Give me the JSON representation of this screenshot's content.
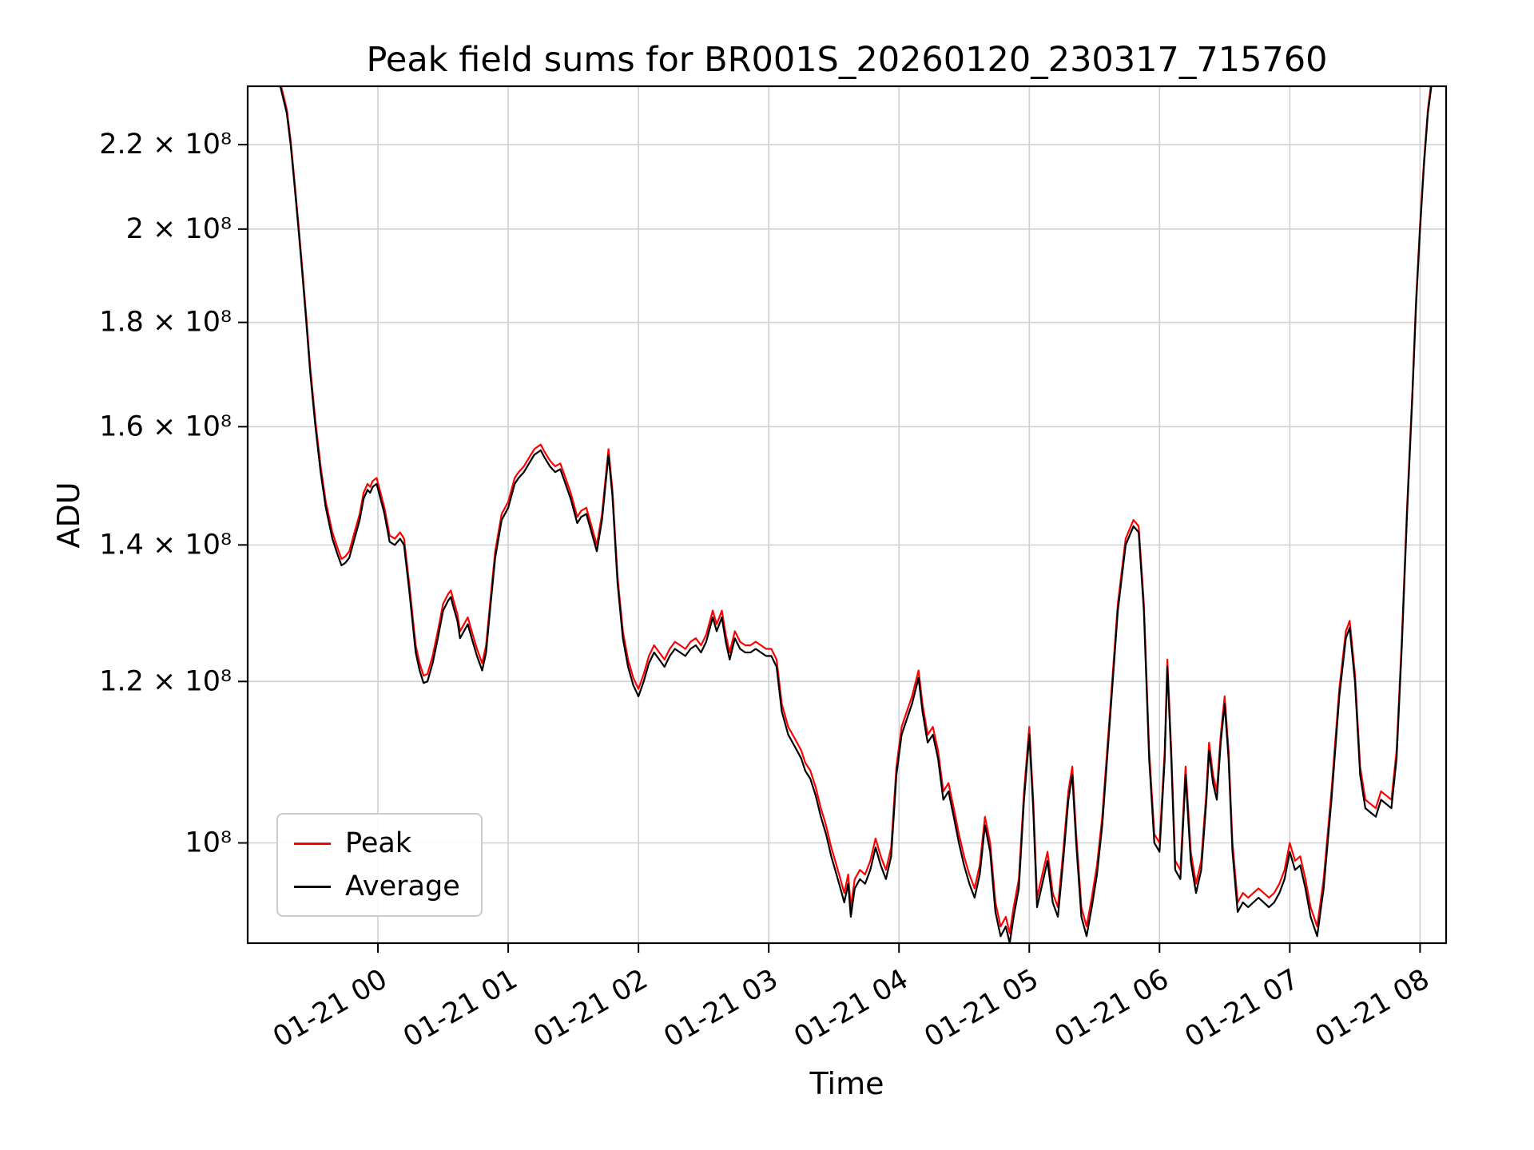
{
  "chart_data": {
    "type": "line",
    "title": "Peak field sums for BR001S_20260120_230317_715760",
    "xlabel": "Time",
    "ylabel": "ADU",
    "y_scale": "log",
    "grid": true,
    "legend_position": "lower left",
    "value_unit": "1e8 ADU",
    "x_unit": "hours since 2026-01-20 23:00",
    "xlim_hours": [
      0,
      9.2
    ],
    "ylim": [
      0.893,
      2.35
    ],
    "x_ticks": [
      {
        "t": 1,
        "label": "01-21 00"
      },
      {
        "t": 2,
        "label": "01-21 01"
      },
      {
        "t": 3,
        "label": "01-21 02"
      },
      {
        "t": 4,
        "label": "01-21 03"
      },
      {
        "t": 5,
        "label": "01-21 04"
      },
      {
        "t": 6,
        "label": "01-21 05"
      },
      {
        "t": 7,
        "label": "01-21 06"
      },
      {
        "t": 8,
        "label": "01-21 07"
      },
      {
        "t": 9,
        "label": "01-21 08"
      }
    ],
    "y_ticks": [
      {
        "value": 1.0,
        "label": "10⁸"
      },
      {
        "value": 1.2,
        "label": "1.2 × 10⁸"
      },
      {
        "value": 1.4,
        "label": "1.4 × 10⁸"
      },
      {
        "value": 1.6,
        "label": "1.6 × 10⁸"
      },
      {
        "value": 1.8,
        "label": "1.8 × 10⁸"
      },
      {
        "value": 2.0,
        "label": "2 × 10⁸"
      },
      {
        "value": 2.2,
        "label": "2.2 × 10⁸"
      }
    ],
    "x": [
      0,
      0.1,
      0.2,
      0.25,
      0.3,
      0.33,
      0.36,
      0.39,
      0.42,
      0.45,
      0.48,
      0.52,
      0.56,
      0.6,
      0.65,
      0.69,
      0.72,
      0.75,
      0.78,
      0.82,
      0.86,
      0.89,
      0.92,
      0.94,
      0.96,
      0.99,
      1.02,
      1.05,
      1.09,
      1.13,
      1.17,
      1.2,
      1.24,
      1.29,
      1.32,
      1.35,
      1.38,
      1.42,
      1.46,
      1.5,
      1.54,
      1.56,
      1.58,
      1.61,
      1.63,
      1.66,
      1.69,
      1.72,
      1.76,
      1.8,
      1.83,
      1.86,
      1.9,
      1.95,
      2,
      2.05,
      2.08,
      2.12,
      2.16,
      2.2,
      2.25,
      2.28,
      2.32,
      2.36,
      2.4,
      2.44,
      2.48,
      2.53,
      2.56,
      2.6,
      2.64,
      2.68,
      2.72,
      2.77,
      2.8,
      2.84,
      2.88,
      2.92,
      2.96,
      3,
      3.04,
      3.08,
      3.12,
      3.16,
      3.2,
      3.24,
      3.28,
      3.32,
      3.36,
      3.4,
      3.44,
      3.48,
      3.52,
      3.57,
      3.6,
      3.64,
      3.67,
      3.7,
      3.74,
      3.78,
      3.82,
      3.86,
      3.9,
      3.94,
      3.98,
      4.02,
      4.06,
      4.1,
      4.15,
      4.2,
      4.25,
      4.28,
      4.32,
      4.36,
      4.4,
      4.44,
      4.48,
      4.52,
      4.56,
      4.58,
      4.61,
      4.63,
      4.66,
      4.7,
      4.74,
      4.78,
      4.82,
      4.86,
      4.9,
      4.94,
      4.98,
      5.02,
      5.06,
      5.1,
      5.15,
      5.18,
      5.22,
      5.26,
      5.3,
      5.34,
      5.38,
      5.42,
      5.46,
      5.5,
      5.54,
      5.58,
      5.62,
      5.66,
      5.7,
      5.74,
      5.78,
      5.82,
      5.85,
      5.88,
      5.92,
      5.96,
      6,
      6.03,
      6.06,
      6.1,
      6.14,
      6.18,
      6.22,
      6.26,
      6.3,
      6.33,
      6.36,
      6.4,
      6.44,
      6.48,
      6.52,
      6.56,
      6.62,
      6.68,
      6.74,
      6.8,
      6.84,
      6.88,
      6.92,
      6.96,
      7,
      7.04,
      7.06,
      7.09,
      7.12,
      7.16,
      7.2,
      7.24,
      7.28,
      7.32,
      7.36,
      7.38,
      7.41,
      7.44,
      7.47,
      7.5,
      7.53,
      7.56,
      7.6,
      7.64,
      7.68,
      7.72,
      7.76,
      7.8,
      7.84,
      7.88,
      7.92,
      7.96,
      8,
      8.04,
      8.08,
      8.12,
      8.16,
      8.21,
      8.26,
      8.32,
      8.38,
      8.43,
      8.46,
      8.5,
      8.54,
      8.58,
      8.62,
      8.66,
      8.7,
      8.74,
      8.78,
      8.82,
      8.86,
      8.9,
      8.94,
      8.97,
      9,
      9.03,
      9.06,
      9.09,
      9.15,
      9.2
    ],
    "series": [
      {
        "name": "Peak",
        "color": "#ff0000",
        "values": [
          2.4,
          2.4,
          2.39,
          2.36,
          2.29,
          2.21,
          2.11,
          2.01,
          1.91,
          1.81,
          1.71,
          1.61,
          1.53,
          1.47,
          1.42,
          1.395,
          1.378,
          1.382,
          1.39,
          1.42,
          1.45,
          1.485,
          1.5,
          1.495,
          1.505,
          1.51,
          1.485,
          1.46,
          1.415,
          1.41,
          1.42,
          1.41,
          1.34,
          1.25,
          1.225,
          1.208,
          1.21,
          1.235,
          1.27,
          1.31,
          1.325,
          1.33,
          1.315,
          1.295,
          1.27,
          1.28,
          1.29,
          1.27,
          1.245,
          1.225,
          1.25,
          1.31,
          1.39,
          1.45,
          1.47,
          1.51,
          1.52,
          1.53,
          1.545,
          1.56,
          1.568,
          1.555,
          1.54,
          1.53,
          1.535,
          1.51,
          1.485,
          1.445,
          1.455,
          1.46,
          1.43,
          1.4,
          1.45,
          1.56,
          1.49,
          1.35,
          1.27,
          1.23,
          1.205,
          1.19,
          1.21,
          1.235,
          1.25,
          1.24,
          1.23,
          1.245,
          1.255,
          1.25,
          1.245,
          1.255,
          1.26,
          1.25,
          1.265,
          1.3,
          1.28,
          1.3,
          1.265,
          1.24,
          1.27,
          1.255,
          1.25,
          1.25,
          1.255,
          1.25,
          1.245,
          1.245,
          1.23,
          1.17,
          1.14,
          1.125,
          1.11,
          1.095,
          1.085,
          1.065,
          1.04,
          1.02,
          0.995,
          0.975,
          0.955,
          0.945,
          0.965,
          0.93,
          0.96,
          0.97,
          0.965,
          0.98,
          1.005,
          0.985,
          0.97,
          0.995,
          1.09,
          1.14,
          1.16,
          1.18,
          1.215,
          1.17,
          1.13,
          1.14,
          1.11,
          1.06,
          1.07,
          1.04,
          1.01,
          0.985,
          0.965,
          0.95,
          0.975,
          1.03,
          1.0,
          0.935,
          0.91,
          0.92,
          0.903,
          0.93,
          0.96,
          1.06,
          1.14,
          1.05,
          0.94,
          0.965,
          0.99,
          0.945,
          0.93,
          0.99,
          1.06,
          1.09,
          1.01,
          0.93,
          0.91,
          0.94,
          0.975,
          1.03,
          1.16,
          1.31,
          1.41,
          1.44,
          1.43,
          1.31,
          1.11,
          1.01,
          1.0,
          1.11,
          1.23,
          1.11,
          0.98,
          0.97,
          1.09,
          0.99,
          0.955,
          0.98,
          1.06,
          1.12,
          1.08,
          1.06,
          1.13,
          1.18,
          1.11,
          1.0,
          0.935,
          0.945,
          0.94,
          0.945,
          0.95,
          0.945,
          0.94,
          0.945,
          0.955,
          0.97,
          1.0,
          0.98,
          0.985,
          0.96,
          0.93,
          0.91,
          0.96,
          1.06,
          1.19,
          1.27,
          1.285,
          1.21,
          1.09,
          1.05,
          1.045,
          1.04,
          1.06,
          1.055,
          1.05,
          1.11,
          1.26,
          1.46,
          1.66,
          1.85,
          2.01,
          2.16,
          2.29,
          2.37,
          2.4,
          2.4
        ]
      },
      {
        "name": "Average",
        "color": "#000000",
        "values": [
          2.4,
          2.4,
          2.38,
          2.35,
          2.28,
          2.2,
          2.1,
          2.0,
          1.9,
          1.8,
          1.7,
          1.6,
          1.52,
          1.46,
          1.41,
          1.385,
          1.368,
          1.372,
          1.38,
          1.41,
          1.44,
          1.475,
          1.49,
          1.485,
          1.495,
          1.5,
          1.475,
          1.45,
          1.405,
          1.4,
          1.41,
          1.4,
          1.33,
          1.24,
          1.215,
          1.198,
          1.2,
          1.225,
          1.26,
          1.3,
          1.315,
          1.32,
          1.305,
          1.285,
          1.26,
          1.27,
          1.28,
          1.26,
          1.235,
          1.215,
          1.24,
          1.3,
          1.38,
          1.44,
          1.46,
          1.5,
          1.51,
          1.52,
          1.535,
          1.55,
          1.558,
          1.545,
          1.53,
          1.52,
          1.525,
          1.5,
          1.475,
          1.435,
          1.445,
          1.45,
          1.42,
          1.39,
          1.44,
          1.55,
          1.48,
          1.34,
          1.26,
          1.22,
          1.195,
          1.18,
          1.2,
          1.225,
          1.24,
          1.23,
          1.22,
          1.235,
          1.245,
          1.24,
          1.235,
          1.245,
          1.25,
          1.24,
          1.255,
          1.29,
          1.27,
          1.29,
          1.255,
          1.23,
          1.26,
          1.245,
          1.24,
          1.24,
          1.245,
          1.24,
          1.235,
          1.235,
          1.22,
          1.16,
          1.13,
          1.115,
          1.1,
          1.085,
          1.075,
          1.055,
          1.03,
          1.01,
          0.985,
          0.965,
          0.945,
          0.935,
          0.955,
          0.92,
          0.95,
          0.96,
          0.955,
          0.97,
          0.995,
          0.975,
          0.96,
          0.985,
          1.08,
          1.13,
          1.15,
          1.17,
          1.205,
          1.16,
          1.12,
          1.13,
          1.1,
          1.05,
          1.06,
          1.03,
          1.0,
          0.975,
          0.955,
          0.94,
          0.965,
          1.02,
          0.99,
          0.925,
          0.9,
          0.91,
          0.893,
          0.92,
          0.95,
          1.05,
          1.13,
          1.04,
          0.93,
          0.955,
          0.98,
          0.935,
          0.92,
          0.98,
          1.05,
          1.08,
          1.0,
          0.92,
          0.9,
          0.93,
          0.965,
          1.02,
          1.15,
          1.3,
          1.4,
          1.43,
          1.42,
          1.3,
          1.1,
          1.0,
          0.99,
          1.1,
          1.22,
          1.1,
          0.97,
          0.96,
          1.08,
          0.98,
          0.945,
          0.97,
          1.05,
          1.11,
          1.07,
          1.05,
          1.12,
          1.17,
          1.1,
          0.99,
          0.925,
          0.935,
          0.93,
          0.935,
          0.94,
          0.935,
          0.93,
          0.935,
          0.945,
          0.96,
          0.99,
          0.97,
          0.975,
          0.95,
          0.92,
          0.9,
          0.95,
          1.05,
          1.18,
          1.26,
          1.275,
          1.2,
          1.08,
          1.04,
          1.035,
          1.03,
          1.05,
          1.045,
          1.04,
          1.1,
          1.25,
          1.45,
          1.65,
          1.84,
          2.0,
          2.15,
          2.28,
          2.36,
          2.4,
          2.4
        ]
      }
    ]
  }
}
